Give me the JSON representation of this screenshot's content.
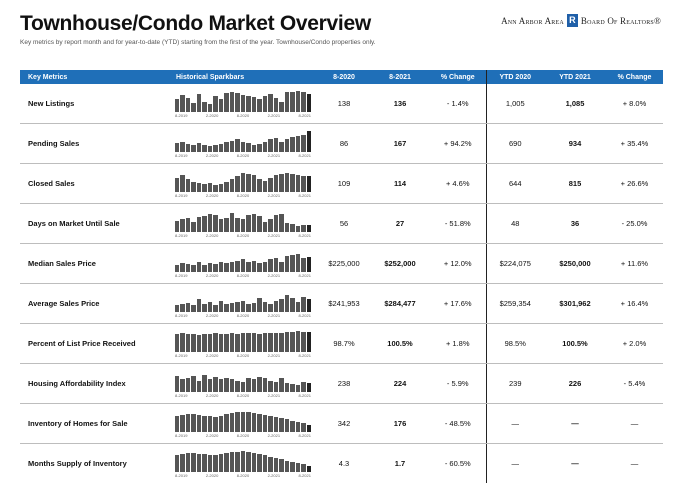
{
  "header": {
    "title": "Townhouse/Condo Market Overview",
    "subtitle": "Key metrics by report month and for year-to-date (YTD) starting from the first of the year. Townhouse/Condo properties only."
  },
  "logo": {
    "text": "Ann Arbor Area",
    "board": "Board Of Realtors®",
    "mark": "R"
  },
  "columns": [
    "Key Metrics",
    "Historical Sparkbars",
    "8-2020",
    "8-2021",
    "% Change",
    "YTD 2020",
    "YTD 2021",
    "% Change"
  ],
  "spark_ticks": [
    "8-2019",
    "2-2020",
    "8-2020",
    "2-2021",
    "8-2021"
  ],
  "rows": [
    {
      "metric": "New Listings",
      "v2020": "138",
      "v2021": "136",
      "chg": "- 1.4%",
      "ytd2020": "1,005",
      "ytd2021": "1,085",
      "ytdchg": "+ 8.0%",
      "spark": [
        55,
        75,
        62,
        40,
        78,
        45,
        35,
        70,
        55,
        85,
        88,
        82,
        75,
        70,
        65,
        55,
        72,
        78,
        60,
        45,
        88,
        90,
        95,
        88,
        78
      ]
    },
    {
      "metric": "Pending Sales",
      "v2020": "86",
      "v2021": "167",
      "chg": "+ 94.2%",
      "ytd2020": "690",
      "ytd2021": "934",
      "ytdchg": "+ 35.4%",
      "spark": [
        40,
        45,
        35,
        30,
        40,
        30,
        25,
        30,
        35,
        45,
        50,
        55,
        45,
        40,
        30,
        35,
        45,
        55,
        60,
        45,
        55,
        65,
        70,
        75,
        95
      ]
    },
    {
      "metric": "Closed Sales",
      "v2020": "109",
      "v2021": "114",
      "chg": "+ 4.6%",
      "ytd2020": "644",
      "ytd2021": "815",
      "ytdchg": "+ 26.6%",
      "spark": [
        60,
        75,
        55,
        45,
        40,
        35,
        40,
        30,
        35,
        45,
        55,
        70,
        85,
        80,
        75,
        55,
        50,
        60,
        75,
        80,
        85,
        80,
        75,
        70,
        72
      ]
    },
    {
      "metric": "Days on Market Until Sale",
      "v2020": "56",
      "v2021": "27",
      "chg": "- 51.8%",
      "ytd2020": "48",
      "ytd2021": "36",
      "ytdchg": "- 25.0%",
      "spark": [
        50,
        55,
        60,
        45,
        65,
        70,
        80,
        75,
        55,
        60,
        85,
        60,
        55,
        75,
        80,
        70,
        45,
        55,
        75,
        80,
        40,
        35,
        25,
        30,
        28
      ]
    },
    {
      "metric": "Median Sales Price",
      "v2020": "$225,000",
      "v2021": "$252,000",
      "chg": "+ 12.0%",
      "ytd2020": "$224,075",
      "ytd2021": "$250,000",
      "ytdchg": "+ 11.6%",
      "spark": [
        30,
        40,
        35,
        30,
        45,
        30,
        40,
        35,
        45,
        40,
        45,
        50,
        55,
        45,
        50,
        40,
        45,
        55,
        60,
        45,
        70,
        75,
        80,
        60,
        65
      ]
    },
    {
      "metric": "Average Sales Price",
      "v2020": "$241,953",
      "v2021": "$284,477",
      "chg": "+ 17.6%",
      "ytd2020": "$259,354",
      "ytd2021": "$301,962",
      "ytdchg": "+ 16.4%",
      "spark": [
        30,
        35,
        40,
        30,
        55,
        35,
        45,
        30,
        50,
        35,
        40,
        45,
        50,
        35,
        40,
        60,
        45,
        35,
        50,
        55,
        75,
        60,
        45,
        65,
        55
      ]
    },
    {
      "metric": "Percent of List Price Received",
      "v2020": "98.7%",
      "v2021": "100.5%",
      "chg": "+ 1.8%",
      "ytd2020": "98.5%",
      "ytd2021": "100.5%",
      "ytdchg": "+ 2.0%",
      "spark": [
        80,
        82,
        78,
        80,
        75,
        78,
        80,
        82,
        80,
        78,
        82,
        80,
        82,
        84,
        82,
        80,
        84,
        86,
        85,
        84,
        88,
        90,
        92,
        90,
        88
      ]
    },
    {
      "metric": "Housing Affordability Index",
      "v2020": "238",
      "v2021": "224",
      "chg": "- 5.9%",
      "ytd2020": "239",
      "ytd2021": "226",
      "ytdchg": "- 5.4%",
      "spark": [
        70,
        55,
        60,
        70,
        50,
        75,
        55,
        65,
        55,
        60,
        55,
        50,
        45,
        60,
        55,
        65,
        60,
        50,
        45,
        60,
        40,
        35,
        30,
        45,
        40
      ]
    },
    {
      "metric": "Inventory of Homes for Sale",
      "v2020": "342",
      "v2021": "176",
      "chg": "- 48.5%",
      "ytd2020": "—",
      "ytd2021": "—",
      "ytdchg": "—",
      "spark": [
        70,
        75,
        80,
        78,
        75,
        72,
        70,
        68,
        72,
        78,
        85,
        88,
        90,
        88,
        85,
        80,
        75,
        70,
        65,
        60,
        55,
        50,
        45,
        40,
        30
      ]
    },
    {
      "metric": "Months Supply of Inventory",
      "v2020": "4.3",
      "v2021": "1.7",
      "chg": "- 60.5%",
      "ytd2020": "—",
      "ytd2021": "—",
      "ytdchg": "—",
      "spark": [
        75,
        80,
        85,
        82,
        80,
        78,
        76,
        74,
        78,
        82,
        88,
        90,
        92,
        90,
        86,
        80,
        74,
        68,
        60,
        55,
        50,
        45,
        40,
        35,
        25
      ]
    }
  ]
}
